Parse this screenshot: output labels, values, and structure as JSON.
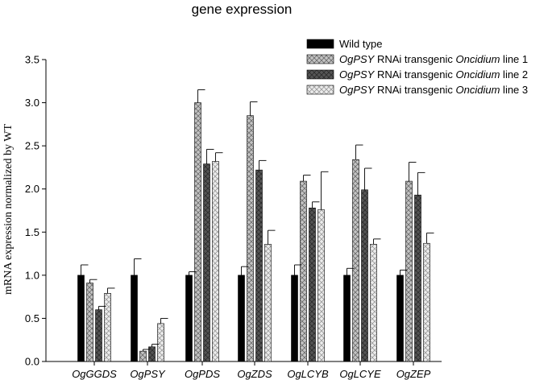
{
  "chart_data": {
    "type": "bar",
    "title": "gene expression",
    "ylabel": "mRNA expression normalized by WT",
    "xlabel": "",
    "ylim": [
      0,
      3.5
    ],
    "yticks": [
      "0.0",
      "0.5",
      "1.0",
      "1.5",
      "2.0",
      "2.5",
      "3.0",
      "3.5"
    ],
    "categories": [
      "OgGGDS",
      "OgPSY",
      "OgPDS",
      "OgZDS",
      "OgLCYB",
      "OgLCYE",
      "OgZEP"
    ],
    "legend_position": "top-right",
    "series": [
      {
        "name": "Wild type",
        "gene": "",
        "mid": "",
        "organism": "",
        "suffix": "",
        "fill": "#000000",
        "values": [
          1.0,
          1.0,
          1.0,
          1.0,
          1.0,
          1.0,
          1.0
        ],
        "errors": [
          0.12,
          0.19,
          0.04,
          0.1,
          0.12,
          0.08,
          0.06
        ]
      },
      {
        "name": "OgPSY RNAi transgenic Oncidium line 1",
        "gene": "OgPSY",
        "mid": " RNAi transgenic ",
        "organism": "Oncidium",
        "suffix": " line 1",
        "fill": "#c4c4c4",
        "values": [
          0.91,
          0.12,
          3.0,
          2.85,
          2.09,
          2.34,
          2.09
        ],
        "errors": [
          0.04,
          0.02,
          0.15,
          0.16,
          0.07,
          0.17,
          0.22
        ]
      },
      {
        "name": "OgPSY RNAi transgenic Oncidium line 2",
        "gene": "OgPSY",
        "mid": " RNAi transgenic ",
        "organism": "Oncidium",
        "suffix": " line 2",
        "fill": "#555555",
        "values": [
          0.6,
          0.17,
          2.29,
          2.22,
          1.78,
          1.99,
          1.93
        ],
        "errors": [
          0.04,
          0.03,
          0.17,
          0.11,
          0.07,
          0.25,
          0.26
        ]
      },
      {
        "name": "OgPSY RNAi transgenic Oncidium line 3",
        "gene": "OgPSY",
        "mid": " RNAi transgenic ",
        "organism": "Oncidium",
        "suffix": " line 3",
        "fill": "#e6e6e6",
        "values": [
          0.79,
          0.44,
          2.32,
          1.36,
          1.76,
          1.36,
          1.37
        ],
        "errors": [
          0.06,
          0.06,
          0.1,
          0.16,
          0.44,
          0.06,
          0.12
        ]
      }
    ]
  }
}
